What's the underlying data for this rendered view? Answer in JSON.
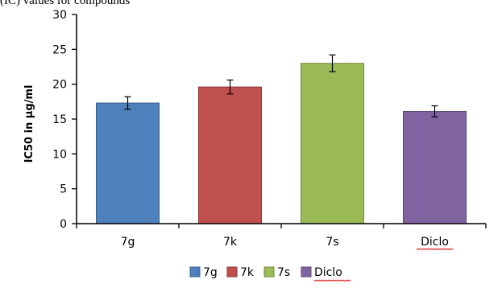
{
  "header_fragment": "(IC) values for compounds",
  "chart_data": {
    "type": "bar",
    "categories": [
      "7g",
      "7k",
      "7s",
      "Diclo"
    ],
    "values": [
      17.3,
      19.6,
      23.0,
      16.1
    ],
    "errors": [
      0.9,
      1.0,
      1.2,
      0.8
    ],
    "colors": [
      "#4f81bd",
      "#c0504d",
      "#9bbb59",
      "#8064a2"
    ],
    "edge_colors": [
      "#385d8a",
      "#8c3836",
      "#71893f",
      "#5c4776"
    ],
    "title": "",
    "xlabel": "",
    "ylabel": "IC50 in µg/ml",
    "ylim": [
      0,
      30
    ],
    "yticks": [
      0,
      5,
      10,
      15,
      20,
      25,
      30
    ],
    "grid": false,
    "legend": {
      "position": "bottom",
      "entries": [
        "7g",
        "7k",
        "7s",
        "Diclo"
      ]
    },
    "spellcheck_underlined": [
      "Diclo"
    ]
  }
}
